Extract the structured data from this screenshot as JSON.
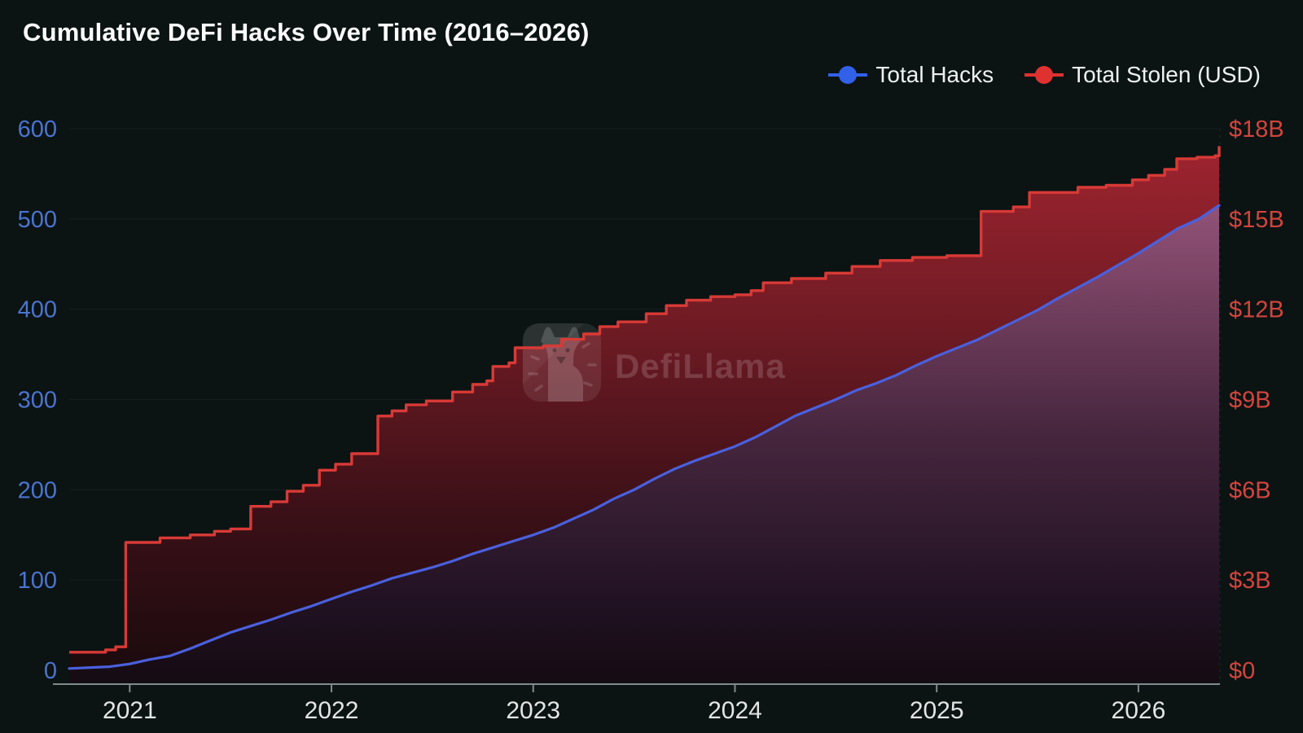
{
  "title": "Cumulative DeFi Hacks Over Time (2016–2026)",
  "watermark_text": "DefiLlama",
  "legend": {
    "items": [
      {
        "label": "Total Hacks",
        "color": "#3260e8"
      },
      {
        "label": "Total Stolen (USD)",
        "color": "#e03131"
      }
    ]
  },
  "chart_data": {
    "type": "line",
    "title": "Cumulative DeFi Hacks Over Time (2016–2026)",
    "background": "#0b1313",
    "grid": true,
    "legend_position": "top-right",
    "x_range": [
      2020.7,
      2026.4
    ],
    "x_ticks": [
      2021,
      2022,
      2023,
      2024,
      2025,
      2026
    ],
    "x_axis_color": "#818a8d",
    "x_label_color": "#e2e5e3",
    "left_axis": {
      "name": "Total Hacks",
      "color": "#4a74cf",
      "range": [
        0,
        600
      ],
      "ticks": [
        "0",
        "100",
        "200",
        "300",
        "400",
        "500",
        "600"
      ]
    },
    "right_axis": {
      "name": "Total Stolen (USD)",
      "color": "#d1453e",
      "range": [
        0,
        18
      ],
      "unit": "billions USD",
      "ticks": [
        "$0",
        "$3B",
        "$6B",
        "$9B",
        "$12B",
        "$15B",
        "$18B"
      ]
    },
    "series": [
      {
        "name": "Total Hacks",
        "axis": "left",
        "color": "#4a60de",
        "interpolation": "linear",
        "points": [
          [
            2020.7,
            2
          ],
          [
            2020.9,
            4
          ],
          [
            2021.0,
            7
          ],
          [
            2021.1,
            12
          ],
          [
            2021.2,
            16
          ],
          [
            2021.3,
            24
          ],
          [
            2021.4,
            33
          ],
          [
            2021.5,
            42
          ],
          [
            2021.6,
            49
          ],
          [
            2021.7,
            56
          ],
          [
            2021.8,
            64
          ],
          [
            2021.9,
            71
          ],
          [
            2022.0,
            79
          ],
          [
            2022.1,
            87
          ],
          [
            2022.2,
            94
          ],
          [
            2022.3,
            102
          ],
          [
            2022.4,
            108
          ],
          [
            2022.5,
            114
          ],
          [
            2022.6,
            121
          ],
          [
            2022.7,
            129
          ],
          [
            2022.8,
            136
          ],
          [
            2022.9,
            143
          ],
          [
            2023.0,
            150
          ],
          [
            2023.1,
            158
          ],
          [
            2023.2,
            168
          ],
          [
            2023.3,
            178
          ],
          [
            2023.4,
            190
          ],
          [
            2023.5,
            200
          ],
          [
            2023.6,
            212
          ],
          [
            2023.7,
            223
          ],
          [
            2023.8,
            232
          ],
          [
            2023.9,
            240
          ],
          [
            2024.0,
            248
          ],
          [
            2024.1,
            258
          ],
          [
            2024.2,
            270
          ],
          [
            2024.3,
            282
          ],
          [
            2024.4,
            291
          ],
          [
            2024.5,
            300
          ],
          [
            2024.6,
            310
          ],
          [
            2024.7,
            318
          ],
          [
            2024.8,
            327
          ],
          [
            2024.9,
            338
          ],
          [
            2025.0,
            348
          ],
          [
            2025.1,
            357
          ],
          [
            2025.2,
            366
          ],
          [
            2025.3,
            377
          ],
          [
            2025.4,
            388
          ],
          [
            2025.5,
            399
          ],
          [
            2025.6,
            412
          ],
          [
            2025.7,
            424
          ],
          [
            2025.8,
            436
          ],
          [
            2025.9,
            449
          ],
          [
            2026.0,
            462
          ],
          [
            2026.1,
            476
          ],
          [
            2026.2,
            490
          ],
          [
            2026.3,
            500
          ],
          [
            2026.4,
            515
          ]
        ]
      },
      {
        "name": "Total Stolen (USD)",
        "axis": "right",
        "color": "#d83a36",
        "interpolation": "step-after",
        "points": [
          [
            2020.7,
            0.6
          ],
          [
            2020.88,
            0.68
          ],
          [
            2020.93,
            0.78
          ],
          [
            2020.98,
            4.25
          ],
          [
            2021.15,
            4.4
          ],
          [
            2021.3,
            4.5
          ],
          [
            2021.42,
            4.62
          ],
          [
            2021.5,
            4.7
          ],
          [
            2021.6,
            5.45
          ],
          [
            2021.7,
            5.6
          ],
          [
            2021.78,
            5.95
          ],
          [
            2021.86,
            6.15
          ],
          [
            2021.94,
            6.65
          ],
          [
            2022.02,
            6.85
          ],
          [
            2022.1,
            7.2
          ],
          [
            2022.23,
            8.45
          ],
          [
            2022.3,
            8.62
          ],
          [
            2022.37,
            8.82
          ],
          [
            2022.47,
            8.95
          ],
          [
            2022.6,
            9.25
          ],
          [
            2022.7,
            9.5
          ],
          [
            2022.77,
            9.62
          ],
          [
            2022.8,
            10.1
          ],
          [
            2022.88,
            10.22
          ],
          [
            2022.91,
            10.72
          ],
          [
            2023.05,
            10.78
          ],
          [
            2023.14,
            11.0
          ],
          [
            2023.25,
            11.18
          ],
          [
            2023.33,
            11.42
          ],
          [
            2023.42,
            11.58
          ],
          [
            2023.56,
            11.85
          ],
          [
            2023.66,
            12.12
          ],
          [
            2023.76,
            12.3
          ],
          [
            2023.88,
            12.42
          ],
          [
            2024.0,
            12.48
          ],
          [
            2024.08,
            12.62
          ],
          [
            2024.14,
            12.88
          ],
          [
            2024.28,
            13.02
          ],
          [
            2024.45,
            13.2
          ],
          [
            2024.58,
            13.42
          ],
          [
            2024.72,
            13.62
          ],
          [
            2024.88,
            13.72
          ],
          [
            2025.05,
            13.78
          ],
          [
            2025.22,
            15.25
          ],
          [
            2025.38,
            15.4
          ],
          [
            2025.46,
            15.88
          ],
          [
            2025.7,
            16.05
          ],
          [
            2025.84,
            16.12
          ],
          [
            2025.97,
            16.3
          ],
          [
            2026.05,
            16.45
          ],
          [
            2026.13,
            16.65
          ],
          [
            2026.19,
            17.0
          ],
          [
            2026.29,
            17.05
          ],
          [
            2026.38,
            17.1
          ],
          [
            2026.4,
            17.42
          ]
        ]
      }
    ]
  }
}
